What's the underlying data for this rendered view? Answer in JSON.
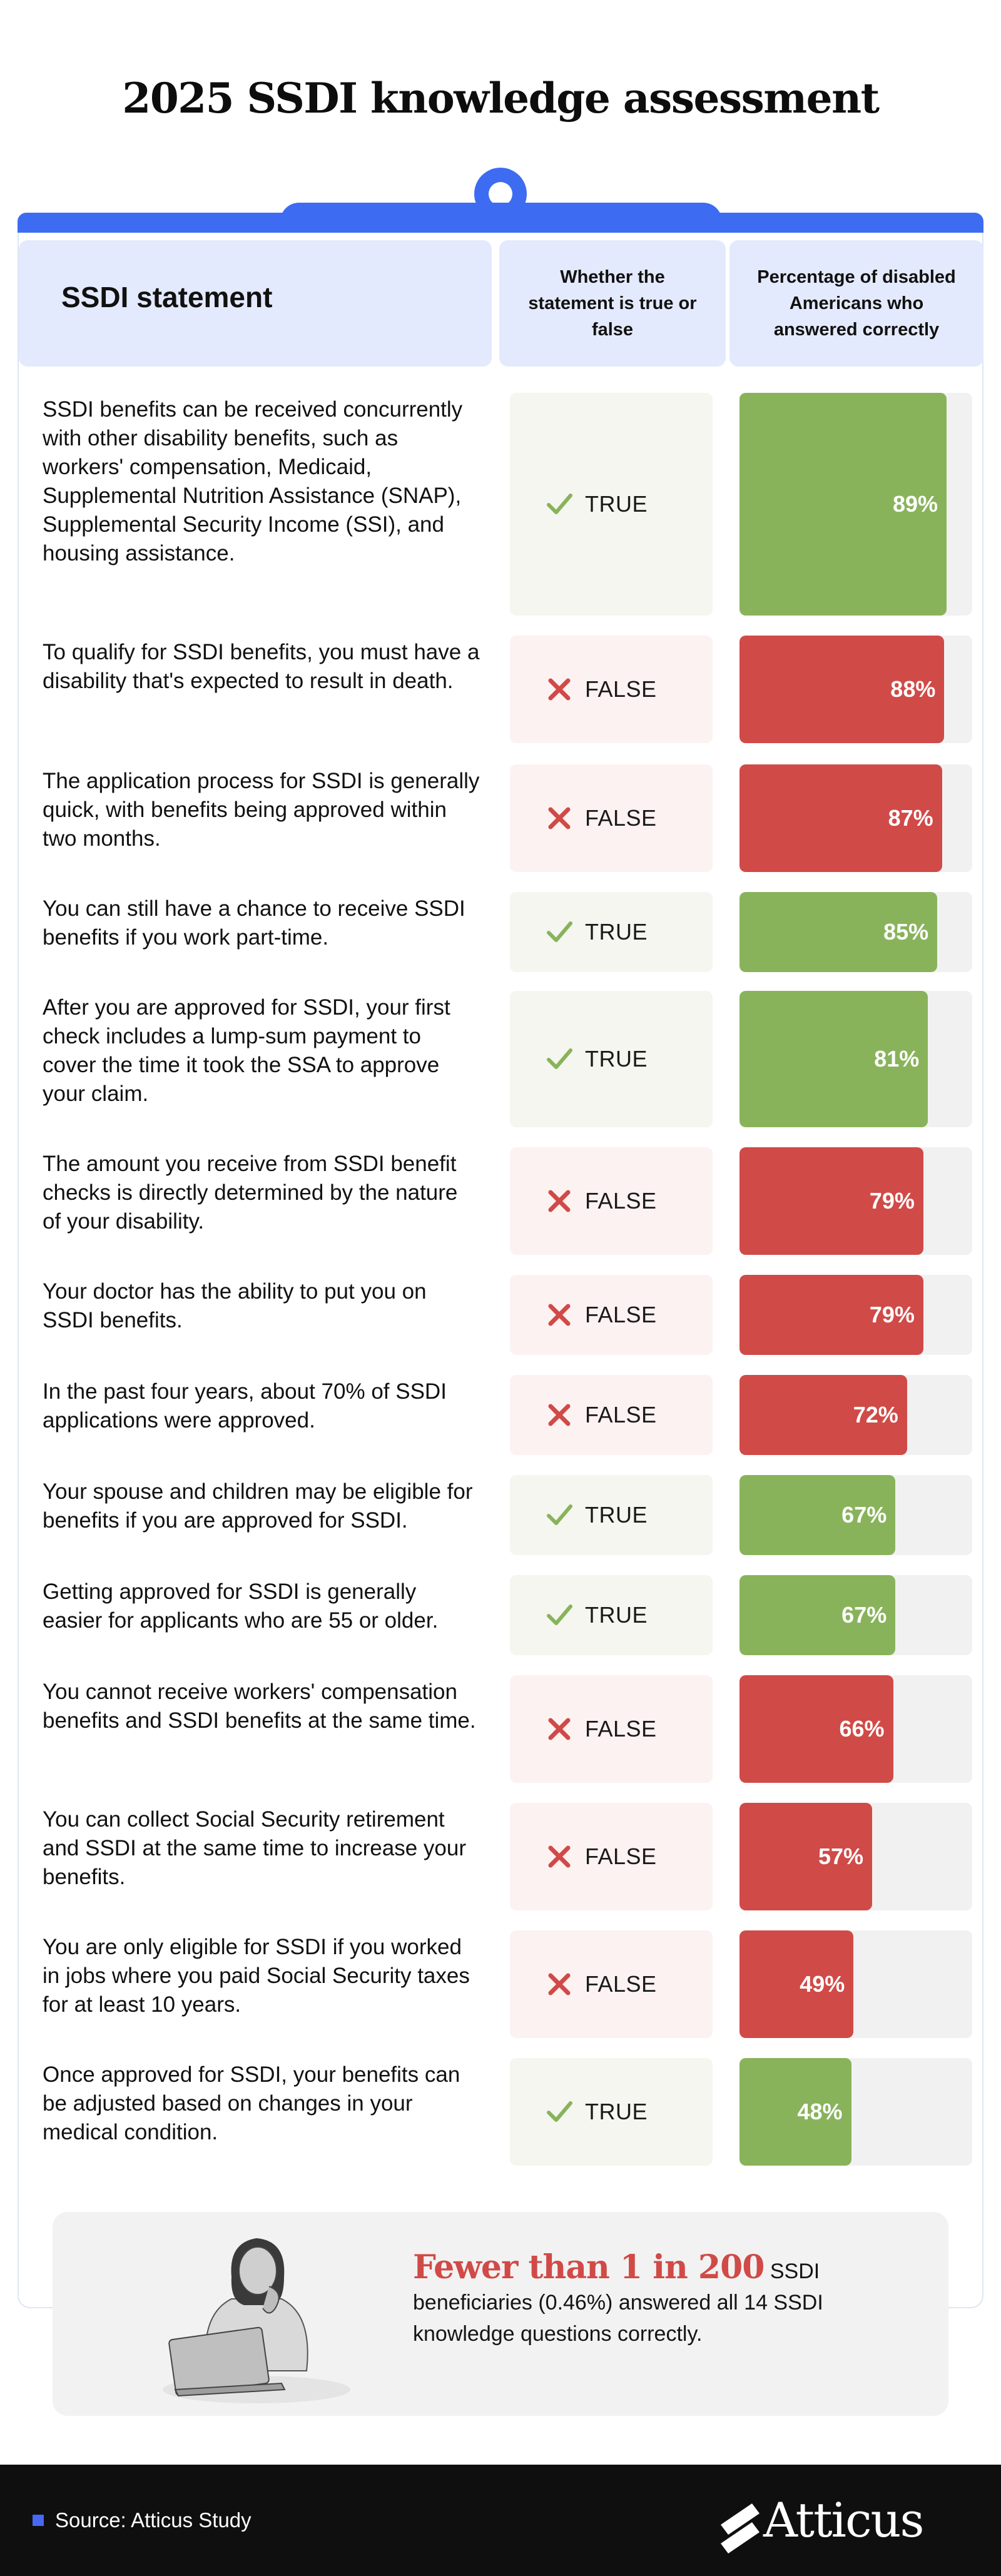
{
  "title": "2025 SSDI knowledge assessment",
  "table_header": {
    "statement": "SSDI statement",
    "truth": "Whether the statement is true or false",
    "percent": "Percentage of disabled Americans who answered correctly"
  },
  "colors": {
    "accent": "#3d6cf2",
    "true": "#89b35b",
    "false": "#d04a47",
    "header_bg": "#e4eafd"
  },
  "chart_data": {
    "type": "bar",
    "ylim": [
      0,
      100
    ],
    "rows": [
      {
        "statement": "SSDI benefits can be received concurrently with other disability benefits, such as workers' compensation, Medicaid, Supplemental Nutrition Assistance (SNAP), Supplemental Security Income (SSI), and housing assistance.",
        "answer": "TRUE",
        "value": 89,
        "label": "89%"
      },
      {
        "statement": "To qualify for SSDI benefits, you must have a disability that's expected to result in death.",
        "answer": "FALSE",
        "value": 88,
        "label": "88%"
      },
      {
        "statement": "The application process for SSDI is generally quick, with benefits being approved within two months.",
        "answer": "FALSE",
        "value": 87,
        "label": "87%"
      },
      {
        "statement": "You can still have a chance to receive SSDI benefits if you work part-time.",
        "answer": "TRUE",
        "value": 85,
        "label": "85%"
      },
      {
        "statement": "After you are approved for SSDI, your first check includes a lump-sum payment to cover the time it took the SSA to approve your claim.",
        "answer": "TRUE",
        "value": 81,
        "label": "81%"
      },
      {
        "statement": "The amount you receive from SSDI benefit checks is directly determined by the nature of your disability.",
        "answer": "FALSE",
        "value": 79,
        "label": "79%"
      },
      {
        "statement": "Your doctor has the ability to put you on SSDI benefits.",
        "answer": "FALSE",
        "value": 79,
        "label": "79%"
      },
      {
        "statement": "In the past four years, about 70% of SSDI applications were approved.",
        "answer": "FALSE",
        "value": 72,
        "label": "72%"
      },
      {
        "statement": "Your spouse and children may be eligible for benefits if you are approved for SSDI.",
        "answer": "TRUE",
        "value": 67,
        "label": "67%"
      },
      {
        "statement": "Getting approved for SSDI is generally easier for applicants who are 55 or older.",
        "answer": "TRUE",
        "value": 67,
        "label": "67%"
      },
      {
        "statement": "You cannot receive workers' compensation benefits and SSDI benefits at the same time.",
        "answer": "FALSE",
        "value": 66,
        "label": "66%"
      },
      {
        "statement": "You can collect Social Security retirement and SSDI at the same time to increase your benefits.",
        "answer": "FALSE",
        "value": 57,
        "label": "57%"
      },
      {
        "statement": "You are only eligible for SSDI if you worked in jobs where you paid Social Security taxes for at least 10 years.",
        "answer": "FALSE",
        "value": 49,
        "label": "49%"
      },
      {
        "statement": "Once approved for SSDI, your benefits can be adjusted based on changes in your medical condition.",
        "answer": "TRUE",
        "value": 48,
        "label": "48%"
      }
    ]
  },
  "callout": {
    "highlight": "Fewer than 1 in 200",
    "text": " SSDI beneficiaries (0.46%) answered all 14 SSDI knowledge questions correctly."
  },
  "footer": {
    "source": "Source: Atticus Study",
    "brand": "Atticus"
  }
}
